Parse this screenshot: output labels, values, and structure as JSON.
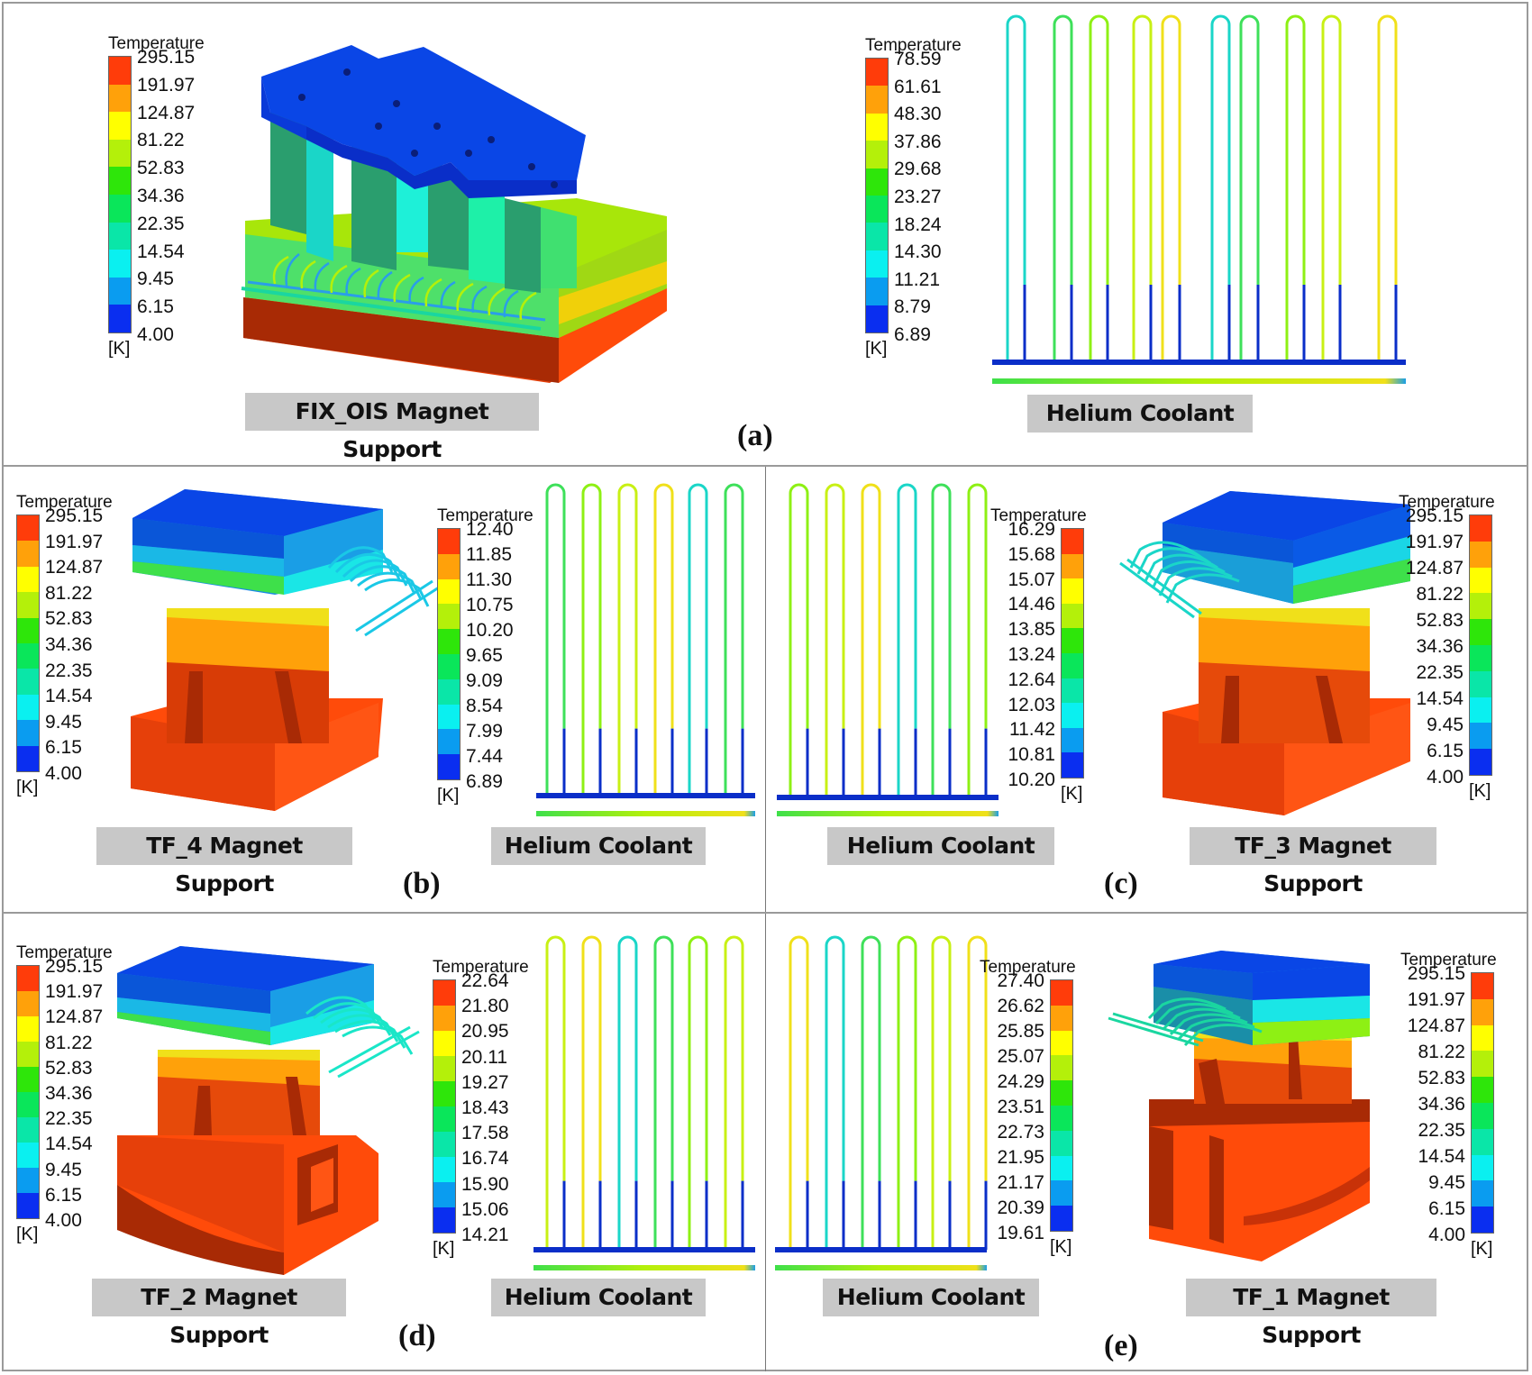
{
  "figure": {
    "panels": [
      {
        "id": "a",
        "label": "(a)",
        "parts": [
          "FIX_OIS Magnet Support",
          "Helium Coolant"
        ]
      },
      {
        "id": "b",
        "label": "(b)",
        "parts": [
          "TF_4 Magnet Support",
          "Helium Coolant"
        ]
      },
      {
        "id": "c",
        "label": "(c)",
        "parts": [
          "Helium Coolant",
          "TF_3 Magnet Support"
        ]
      },
      {
        "id": "d",
        "label": "(d)",
        "parts": [
          "TF_2 Magnet Support",
          "Helium Coolant"
        ]
      },
      {
        "id": "e",
        "label": "(e)",
        "parts": [
          "Helium Coolant",
          "TF_1 Magnet Support"
        ]
      }
    ]
  },
  "legend_title": "Temperature",
  "legend_unit": "[K]",
  "legend_colors": [
    "#ff3c0a",
    "#ffa10a",
    "#ffff00",
    "#b4f00a",
    "#2ee60a",
    "#0ae65a",
    "#0ae6a8",
    "#0af0f0",
    "#0a9cf0",
    "#0a2ef0"
  ],
  "legends": {
    "support": [
      "295.15",
      "191.97",
      "124.87",
      "81.22",
      "52.83",
      "34.36",
      "22.35",
      "14.54",
      "9.45",
      "6.15",
      "4.00"
    ],
    "coolant_a": [
      "78.59",
      "61.61",
      "48.30",
      "37.86",
      "29.68",
      "23.27",
      "18.24",
      "14.30",
      "11.21",
      "8.79",
      "6.89"
    ],
    "coolant_b": [
      "12.40",
      "11.85",
      "11.30",
      "10.75",
      "10.20",
      "9.65",
      "9.09",
      "8.54",
      "7.99",
      "7.44",
      "6.89"
    ],
    "coolant_c": [
      "16.29",
      "15.68",
      "15.07",
      "14.46",
      "13.85",
      "13.24",
      "12.64",
      "12.03",
      "11.42",
      "10.81",
      "10.20"
    ],
    "coolant_d": [
      "22.64",
      "21.80",
      "20.95",
      "20.11",
      "19.27",
      "18.43",
      "17.58",
      "16.74",
      "15.90",
      "15.06",
      "14.21"
    ],
    "coolant_e": [
      "27.40",
      "26.62",
      "25.85",
      "25.07",
      "24.29",
      "23.51",
      "22.73",
      "21.95",
      "21.17",
      "20.39",
      "19.61"
    ]
  },
  "tags": {
    "a_support": "FIX_OIS Magnet Support",
    "a_coolant": "Helium Coolant",
    "b_support": "TF_4 Magnet Support",
    "b_coolant": "Helium Coolant",
    "c_coolant": "Helium Coolant",
    "c_support": "TF_3 Magnet Support",
    "d_support": "TF_2 Magnet Support",
    "d_coolant": "Helium Coolant",
    "e_coolant": "Helium Coolant",
    "e_support": "TF_1 Magnet Support"
  },
  "labels": {
    "a": "(a)",
    "b": "(b)",
    "c": "(c)",
    "d": "(d)",
    "e": "(e)"
  }
}
